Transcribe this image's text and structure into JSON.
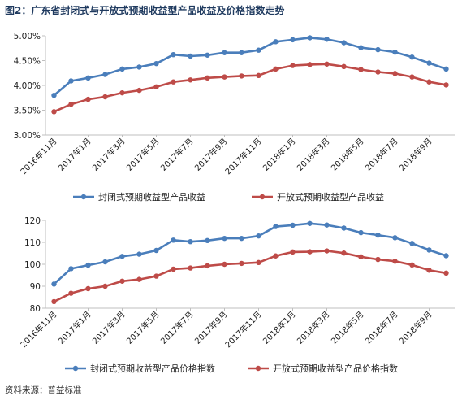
{
  "figure": {
    "title": "图2：广东省封闭式与开放式预期收益型产品收益及价格指数走势",
    "source": "资料来源：普益标准"
  },
  "chart_data": [
    {
      "type": "line",
      "categories": [
        "2016年11月",
        "2016年12月",
        "2017年1月",
        "2017年2月",
        "2017年3月",
        "2017年4月",
        "2017年5月",
        "2017年6月",
        "2017年7月",
        "2017年8月",
        "2017年9月",
        "2017年10月",
        "2017年11月",
        "2017年12月",
        "2018年1月",
        "2018年2月",
        "2018年3月",
        "2018年4月",
        "2018年5月",
        "2018年6月",
        "2018年7月",
        "2018年8月",
        "2018年9月",
        "2018年10月"
      ],
      "tick_labels": [
        "2016年11月",
        "2017年1月",
        "2017年3月",
        "2017年5月",
        "2017年7月",
        "2017年9月",
        "2017年11月",
        "2018年1月",
        "2018年3月",
        "2018年5月",
        "2018年7月",
        "2018年9月"
      ],
      "y_tick_labels": [
        "3.00%",
        "3.50%",
        "4.00%",
        "4.50%",
        "5.00%"
      ],
      "ylim": [
        3.0,
        5.0
      ],
      "y_unit": "%",
      "grid": false,
      "legend_position": "bottom",
      "series": [
        {
          "name": "封闭式预期收益型产品收益",
          "color": "#4a7ebb",
          "values": [
            3.8,
            4.09,
            4.15,
            4.22,
            4.33,
            4.37,
            4.44,
            4.62,
            4.59,
            4.61,
            4.66,
            4.66,
            4.71,
            4.88,
            4.92,
            4.96,
            4.93,
            4.86,
            4.76,
            4.72,
            4.67,
            4.57,
            4.45,
            4.33
          ]
        },
        {
          "name": "开放式预期收益型产品收益",
          "color": "#be4b48",
          "values": [
            3.47,
            3.62,
            3.72,
            3.77,
            3.85,
            3.9,
            3.97,
            4.07,
            4.11,
            4.15,
            4.17,
            4.19,
            4.2,
            4.33,
            4.4,
            4.42,
            4.43,
            4.38,
            4.32,
            4.27,
            4.24,
            4.17,
            4.07,
            4.01
          ]
        }
      ]
    },
    {
      "type": "line",
      "categories": [
        "2016年11月",
        "2016年12月",
        "2017年1月",
        "2017年2月",
        "2017年3月",
        "2017年4月",
        "2017年5月",
        "2017年6月",
        "2017年7月",
        "2017年8月",
        "2017年9月",
        "2017年10月",
        "2017年11月",
        "2017年12月",
        "2018年1月",
        "2018年2月",
        "2018年3月",
        "2018年4月",
        "2018年5月",
        "2018年6月",
        "2018年7月",
        "2018年8月",
        "2018年9月",
        "2018年10月"
      ],
      "tick_labels": [
        "2016年11月",
        "2017年1月",
        "2017年3月",
        "2017年5月",
        "2017年7月",
        "2017年9月",
        "2017年11月",
        "2018年1月",
        "2018年3月",
        "2018年5月",
        "2018年7月",
        "2018年9月"
      ],
      "y_tick_labels": [
        "80",
        "90",
        "100",
        "110",
        "120"
      ],
      "ylim": [
        80,
        120
      ],
      "grid": false,
      "legend_position": "bottom",
      "series": [
        {
          "name": "封闭式预期收益型产品价格指数",
          "color": "#4a7ebb",
          "values": [
            91.0,
            98.0,
            99.6,
            101.1,
            103.6,
            104.6,
            106.3,
            111.0,
            110.3,
            110.8,
            111.8,
            111.8,
            112.9,
            117.2,
            117.8,
            118.6,
            117.9,
            116.5,
            114.4,
            113.3,
            112.1,
            109.5,
            106.5,
            103.9
          ]
        },
        {
          "name": "开放式预期收益型产品价格指数",
          "color": "#be4b48",
          "values": [
            83.0,
            86.8,
            88.9,
            90.0,
            92.3,
            93.1,
            94.6,
            97.8,
            98.3,
            99.3,
            100.0,
            100.4,
            100.8,
            103.8,
            105.6,
            105.7,
            106.1,
            105.1,
            103.4,
            102.2,
            101.4,
            99.7,
            97.3,
            96.0
          ]
        }
      ]
    }
  ]
}
